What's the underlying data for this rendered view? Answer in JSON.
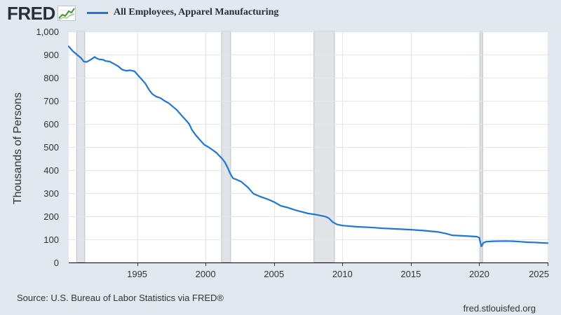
{
  "brand": {
    "logo_text": "FRED",
    "logo_icon": "line-graph-icon"
  },
  "legend": {
    "label": "All Employees, Apparel Manufacturing",
    "color": "#1f77d4"
  },
  "footer": {
    "source": "Source: U.S. Bureau of Labor Statistics via FRED®",
    "site": "fred.stlouisfed.org"
  },
  "chart_data": {
    "type": "line",
    "title": "",
    "xlabel": "",
    "ylabel": "Thousands of Persons",
    "xlim": [
      1990.0,
      2025.0
    ],
    "ylim": [
      0,
      1000
    ],
    "xticks": [
      1995,
      2000,
      2005,
      2010,
      2015,
      2020,
      2025
    ],
    "xtick_labels": [
      "1995",
      "2000",
      "2005",
      "2010",
      "2015",
      "2020",
      "2025"
    ],
    "yticks": [
      0,
      100,
      200,
      300,
      400,
      500,
      600,
      700,
      800,
      900,
      1000
    ],
    "ytick_labels": [
      "0",
      "100",
      "200",
      "300",
      "400",
      "500",
      "600",
      "700",
      "800",
      "900",
      "1,000"
    ],
    "grid": true,
    "legend_position": "top-left",
    "recessions": [
      [
        1990.58,
        1991.17
      ],
      [
        2001.17,
        2001.83
      ],
      [
        2007.92,
        2009.42
      ],
      [
        2020.08,
        2020.25
      ]
    ],
    "series": [
      {
        "name": "All Employees, Apparel Manufacturing",
        "color": "#1f77d4",
        "x": [
          1990.0,
          1990.3,
          1990.6,
          1990.9,
          1991.1,
          1991.3,
          1991.6,
          1991.9,
          1992.0,
          1992.2,
          1992.5,
          1992.7,
          1993.0,
          1993.3,
          1993.6,
          1993.9,
          1994.2,
          1994.5,
          1994.8,
          1995.0,
          1995.3,
          1995.6,
          1995.9,
          1996.1,
          1996.4,
          1996.7,
          1997.0,
          1997.3,
          1997.6,
          1997.9,
          1998.2,
          1998.5,
          1998.8,
          1999.0,
          1999.3,
          1999.6,
          1999.9,
          2000.2,
          2000.5,
          2000.8,
          2001.0,
          2001.2,
          2001.4,
          2001.6,
          2001.8,
          2002.0,
          2002.3,
          2002.6,
          2002.9,
          2003.1,
          2003.5,
          2004.0,
          2004.5,
          2005.0,
          2005.5,
          2006.0,
          2006.5,
          2007.0,
          2007.5,
          2008.0,
          2008.5,
          2008.8,
          2009.0,
          2009.3,
          2009.6,
          2010.0,
          2011.0,
          2012.0,
          2013.0,
          2014.0,
          2015.0,
          2016.0,
          2017.0,
          2017.6,
          2018.0,
          2019.0,
          2019.8,
          2020.0,
          2020.15,
          2020.3,
          2020.5,
          2021.0,
          2022.0,
          2022.5,
          2023.0,
          2023.5,
          2024.0,
          2024.5,
          2025.0
        ],
        "values": [
          935,
          915,
          900,
          885,
          870,
          868,
          878,
          890,
          885,
          880,
          878,
          872,
          870,
          860,
          850,
          835,
          830,
          832,
          828,
          815,
          795,
          775,
          745,
          730,
          718,
          712,
          700,
          690,
          675,
          660,
          640,
          620,
          600,
          575,
          550,
          530,
          510,
          500,
          488,
          475,
          462,
          450,
          435,
          412,
          385,
          365,
          358,
          350,
          335,
          325,
          298,
          285,
          275,
          262,
          245,
          238,
          228,
          220,
          212,
          208,
          202,
          198,
          192,
          175,
          165,
          160,
          155,
          152,
          148,
          145,
          142,
          138,
          132,
          125,
          118,
          115,
          112,
          108,
          70,
          85,
          90,
          92,
          93,
          92,
          90,
          88,
          87,
          85,
          84
        ]
      }
    ]
  }
}
